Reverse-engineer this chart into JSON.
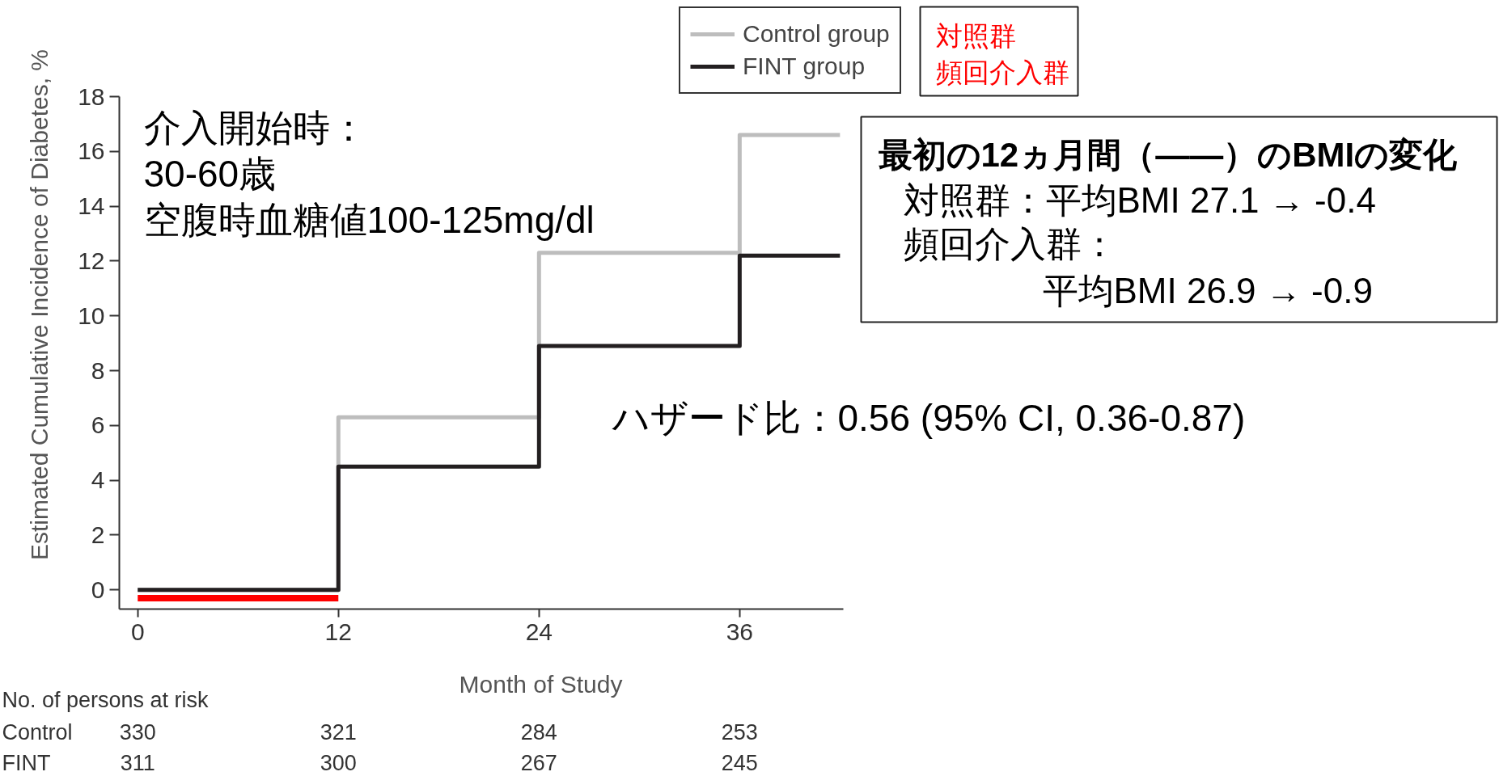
{
  "chart_data": {
    "type": "step",
    "xlabel": "Month of Study",
    "ylabel": "Estimated Cumulative Incidence of Diabetes, %",
    "series": [
      {
        "name": "Control group",
        "color": "#bdbdbd",
        "x": [
          0,
          12,
          24,
          36,
          42
        ],
        "values": [
          0,
          6.3,
          12.3,
          16.6,
          16.6
        ]
      },
      {
        "name": "FINT group",
        "color": "#231f20",
        "x": [
          0,
          12,
          24,
          36,
          42
        ],
        "values": [
          0,
          4.5,
          8.9,
          12.2,
          12.2
        ]
      },
      {
        "type": "line",
        "color": "#ff0000",
        "x": [
          0,
          12
        ],
        "values": [
          -0.3,
          -0.3
        ]
      }
    ],
    "xlim": [
      -1.1,
      42.2
    ],
    "xticks": [
      0,
      12,
      24,
      36
    ],
    "ylim": [
      -0.7,
      18
    ],
    "yticks": [
      0,
      2,
      4,
      6,
      8,
      10,
      12,
      14,
      16,
      18
    ],
    "legend": "top right",
    "grid": false,
    "annotations": [
      "介入開始時：",
      "30-60歳",
      "空腹時血糖値100-125mg/dl",
      "ハザード比：0.56 (95% CI, 0.36-0.87)",
      "最初の12ヵ月間（——）のBMIの変化",
      "対照群：平均BMI 27.1 → -0.4",
      "頻回介入群：",
      "平均BMI 26.9 → -0.9",
      "対照群",
      "頻回介入群",
      "No. of persons at risk",
      "Control",
      "330",
      "321",
      "284",
      "253",
      "FINT",
      "311",
      "300",
      "267",
      "245"
    ]
  }
}
